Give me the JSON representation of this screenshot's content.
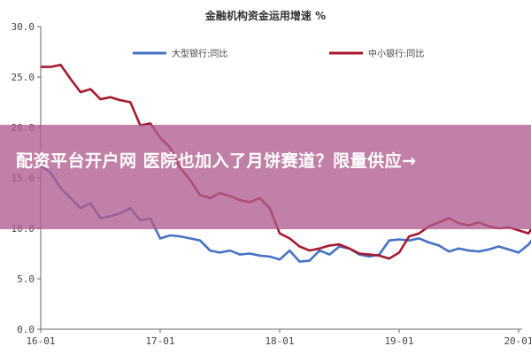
{
  "chart_data": {
    "type": "line",
    "title": "金融机构资金运用增速 %",
    "ylim": [
      0,
      30
    ],
    "yticks": [
      "0.0",
      "5.0",
      "10.0",
      "15.0",
      "20.0",
      "25.0",
      "30.0"
    ],
    "xticks": [
      {
        "label": "16-01",
        "index": 0
      },
      {
        "label": "17-01",
        "index": 12
      },
      {
        "label": "18-01",
        "index": 24
      },
      {
        "label": "19-01",
        "index": 36
      },
      {
        "label": "20-01",
        "index": 48
      }
    ],
    "grid": false,
    "legend": "top",
    "series": [
      {
        "name": "大型银行:同比",
        "color": "#4472C4",
        "values": [
          16.2,
          15.5,
          14.0,
          13.0,
          12.0,
          12.5,
          11.0,
          11.2,
          11.5,
          12.0,
          10.8,
          11.0,
          9.0,
          9.3,
          9.2,
          9.0,
          8.8,
          7.8,
          7.6,
          7.8,
          7.4,
          7.5,
          7.3,
          7.2,
          6.9,
          7.8,
          6.7,
          6.8,
          7.8,
          7.4,
          8.2,
          8.0,
          7.4,
          7.2,
          7.4,
          8.8,
          8.9,
          8.8,
          9.0,
          8.6,
          8.3,
          7.7,
          8.0,
          7.8,
          7.7,
          7.9,
          8.2,
          7.9,
          7.6,
          8.4,
          9.8,
          10.5,
          9.5,
          9.6
        ]
      },
      {
        "name": "中小银行:同比",
        "color": "#A6192E",
        "values": [
          26.0,
          26.0,
          26.2,
          24.8,
          23.5,
          23.8,
          22.8,
          23.0,
          22.7,
          22.5,
          20.2,
          20.4,
          19.0,
          18.0,
          16.0,
          14.8,
          13.3,
          13.0,
          13.5,
          13.2,
          12.8,
          12.6,
          13.0,
          12.0,
          9.5,
          9.0,
          8.2,
          7.8,
          8.0,
          8.3,
          8.4,
          8.0,
          7.5,
          7.4,
          7.3,
          7.0,
          7.6,
          9.2,
          9.5,
          10.2,
          10.6,
          11.0,
          10.5,
          10.3,
          10.6,
          10.2,
          10.0,
          10.1,
          9.8,
          9.5,
          11.2,
          11.8,
          11.5,
          12.3
        ]
      }
    ]
  },
  "overlay": {
    "headline": "配资平台开户网 医院也加入了月饼赛道？限量供应→"
  }
}
